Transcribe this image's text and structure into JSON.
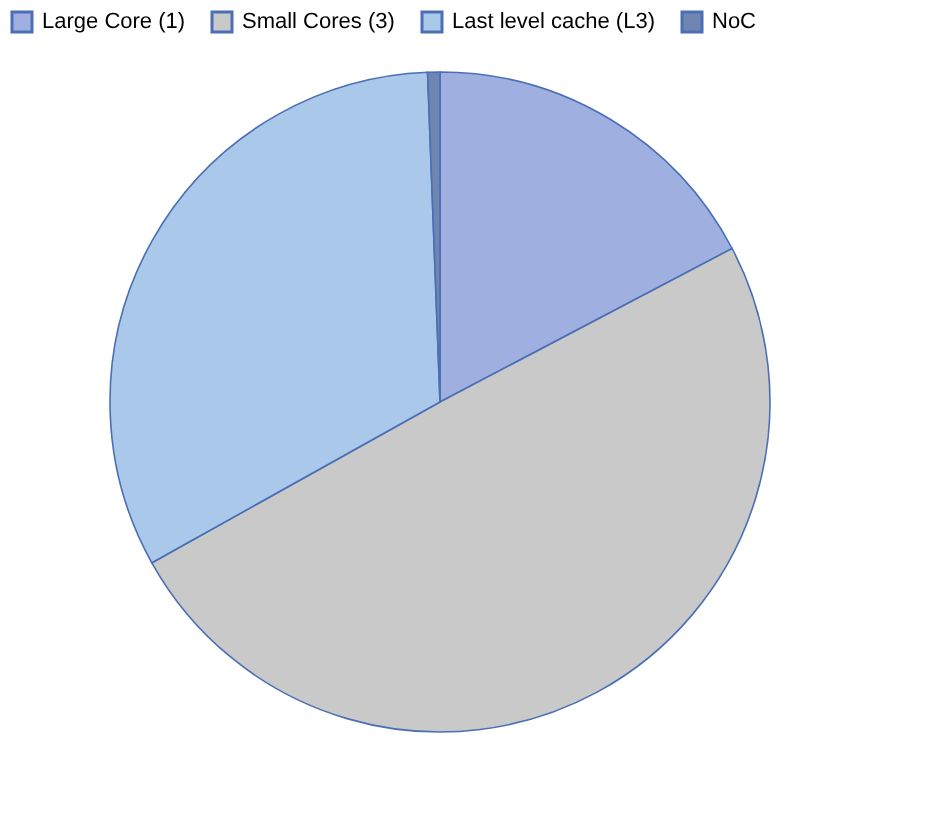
{
  "chart_data": {
    "type": "pie",
    "categories": [
      "Large Core (1)",
      "Small Cores (3)",
      "Last level cache (L3)",
      "NoC"
    ],
    "values": [
      17.3,
      49.6,
      32.5,
      0.6
    ],
    "colors": [
      "#9fb0e0",
      "#c9c9c9",
      "#a9c8ea",
      "#6f86b0"
    ],
    "legend": "top"
  }
}
